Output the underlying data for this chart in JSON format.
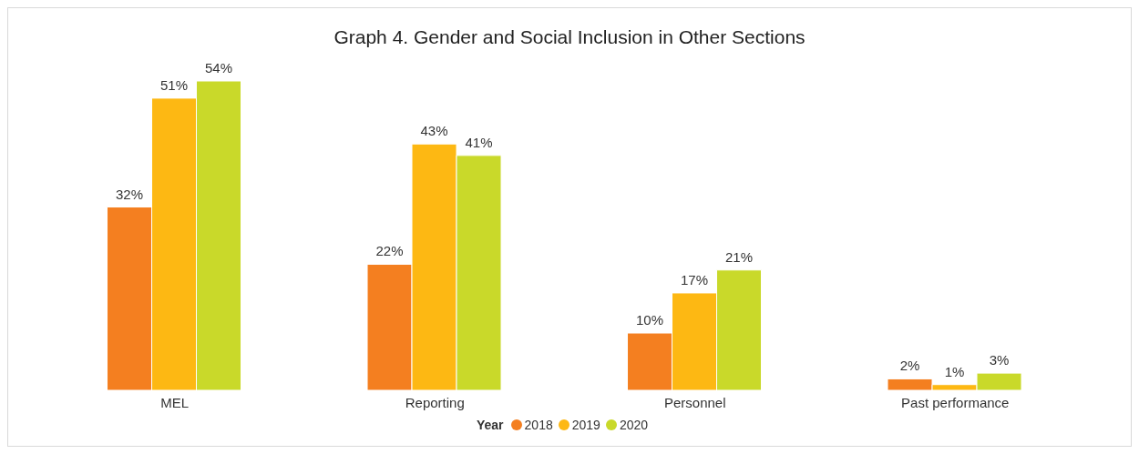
{
  "chart_data": {
    "type": "bar",
    "title": "Graph 4. Gender and Social Inclusion in Other Sections",
    "legend_title": "Year",
    "categories": [
      "MEL",
      "Reporting",
      "Personnel",
      "Past performance"
    ],
    "series": [
      {
        "name": "2018",
        "color": "#f47f20",
        "values": [
          32,
          22,
          10,
          2
        ],
        "value_labels": [
          "32%",
          "22%",
          "10%",
          "2%"
        ]
      },
      {
        "name": "2019",
        "color": "#fdb813",
        "values": [
          51,
          43,
          17,
          1
        ],
        "value_labels": [
          "51%",
          "43%",
          "17%",
          "1%"
        ]
      },
      {
        "name": "2020",
        "color": "#c9d92a",
        "values": [
          54,
          41,
          21,
          3
        ],
        "value_labels": [
          "54%",
          "41%",
          "21%",
          "3%"
        ]
      }
    ],
    "legend": "bottom",
    "grid": false
  }
}
